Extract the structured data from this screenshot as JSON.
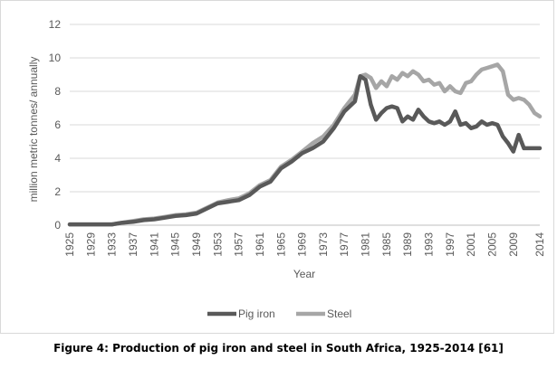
{
  "caption": "Figure 4: Production of pig iron and steel in South Africa, 1925-2014 [61]",
  "chart_data": {
    "type": "line",
    "title": "",
    "xlabel": "Year",
    "ylabel": "million metric tonnes/ annually",
    "ylim": [
      0,
      12
    ],
    "yticks": [
      "0",
      "2",
      "4",
      "6",
      "8",
      "10",
      "12"
    ],
    "xticks": [
      "1925",
      "1929",
      "1933",
      "1937",
      "1941",
      "1945",
      "1949",
      "1953",
      "1957",
      "1961",
      "1965",
      "1969",
      "1973",
      "1977",
      "1981",
      "1985",
      "1989",
      "1993",
      "1997",
      "2001",
      "2005",
      "2009",
      "2014"
    ],
    "grid": "horizontal",
    "legend_position": "bottom",
    "x": [
      1925,
      1927,
      1929,
      1931,
      1933,
      1935,
      1937,
      1939,
      1941,
      1943,
      1945,
      1947,
      1949,
      1951,
      1953,
      1955,
      1957,
      1959,
      1961,
      1963,
      1965,
      1967,
      1969,
      1971,
      1973,
      1975,
      1977,
      1979,
      1980,
      1981,
      1982,
      1983,
      1984,
      1985,
      1986,
      1987,
      1988,
      1989,
      1990,
      1991,
      1992,
      1993,
      1994,
      1995,
      1996,
      1997,
      1998,
      1999,
      2000,
      2001,
      2002,
      2003,
      2004,
      2005,
      2006,
      2007,
      2008,
      2009,
      2010,
      2011,
      2012,
      2013,
      2014
    ],
    "series": [
      {
        "name": "Pig iron",
        "color": "#595959",
        "values": [
          0.05,
          0.05,
          0.05,
          0.05,
          0.05,
          0.15,
          0.2,
          0.3,
          0.35,
          0.45,
          0.55,
          0.6,
          0.7,
          1.0,
          1.3,
          1.4,
          1.5,
          1.8,
          2.3,
          2.6,
          3.4,
          3.8,
          4.3,
          4.6,
          5.0,
          5.8,
          6.8,
          7.4,
          8.9,
          8.7,
          7.2,
          6.3,
          6.7,
          7.0,
          7.1,
          7.0,
          6.2,
          6.5,
          6.3,
          6.9,
          6.5,
          6.2,
          6.1,
          6.2,
          6.0,
          6.2,
          6.8,
          6.0,
          6.1,
          5.8,
          5.9,
          6.2,
          6.0,
          6.1,
          6.0,
          5.3,
          4.9,
          4.4,
          5.4,
          4.6,
          4.6,
          4.6,
          4.6
        ]
      },
      {
        "name": "Steel",
        "color": "#a6a6a6",
        "values": [
          0.05,
          0.05,
          0.05,
          0.05,
          0.05,
          0.15,
          0.25,
          0.35,
          0.4,
          0.5,
          0.6,
          0.65,
          0.75,
          1.05,
          1.35,
          1.5,
          1.6,
          1.9,
          2.4,
          2.7,
          3.5,
          3.9,
          4.4,
          4.9,
          5.3,
          6.0,
          7.0,
          7.8,
          8.9,
          9.0,
          8.8,
          8.2,
          8.6,
          8.3,
          8.9,
          8.7,
          9.1,
          8.9,
          9.2,
          9.0,
          8.6,
          8.7,
          8.4,
          8.5,
          8.0,
          8.3,
          8.0,
          7.9,
          8.5,
          8.6,
          9.0,
          9.3,
          9.4,
          9.5,
          9.6,
          9.2,
          7.8,
          7.5,
          7.6,
          7.5,
          7.2,
          6.7,
          6.5
        ]
      }
    ]
  }
}
